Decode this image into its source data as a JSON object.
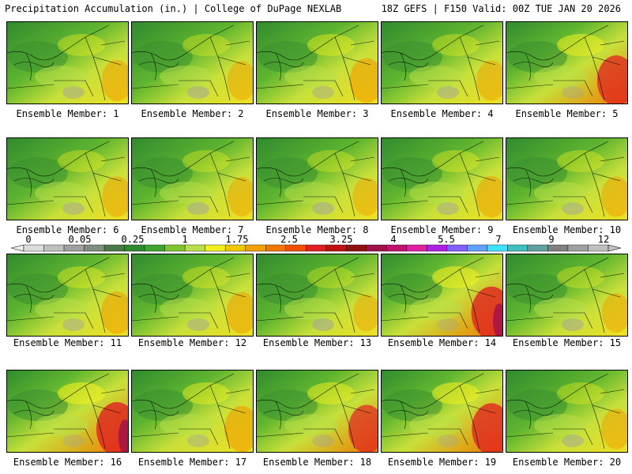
{
  "header": {
    "left": "Precipitation Accumulation (in.) | College of DuPage NEXLAB",
    "right": "18Z GEFS | F150 Valid: 00Z TUE JAN 20 2026"
  },
  "members": [
    {
      "label": "Ensemble Member: 1",
      "intensity": 0.45
    },
    {
      "label": "Ensemble Member: 2",
      "intensity": 0.35
    },
    {
      "label": "Ensemble Member: 3",
      "intensity": 0.6
    },
    {
      "label": "Ensemble Member: 4",
      "intensity": 0.4
    },
    {
      "label": "Ensemble Member: 5",
      "intensity": 0.85
    },
    {
      "label": "Ensemble Member: 6",
      "intensity": 0.4
    },
    {
      "label": "Ensemble Member: 7",
      "intensity": 0.35
    },
    {
      "label": "Ensemble Member: 8",
      "intensity": 0.3
    },
    {
      "label": "Ensemble Member: 9",
      "intensity": 0.45
    },
    {
      "label": "Ensemble Member: 10",
      "intensity": 0.4
    },
    {
      "label": "Ensemble Member: 11",
      "intensity": 0.5
    },
    {
      "label": "Ensemble Member: 12",
      "intensity": 0.45
    },
    {
      "label": "Ensemble Member: 13",
      "intensity": 0.25
    },
    {
      "label": "Ensemble Member: 14",
      "intensity": 0.95
    },
    {
      "label": "Ensemble Member: 15",
      "intensity": 0.35
    },
    {
      "label": "Ensemble Member: 16",
      "intensity": 1.0
    },
    {
      "label": "Ensemble Member: 17",
      "intensity": 0.65
    },
    {
      "label": "Ensemble Member: 18",
      "intensity": 0.75
    },
    {
      "label": "Ensemble Member: 19",
      "intensity": 0.9
    },
    {
      "label": "Ensemble Member: 20",
      "intensity": 0.4
    }
  ],
  "colorbar": {
    "colors": [
      "#dcdcdc",
      "#c0c0c0",
      "#a0a0a0",
      "#7f8f7f",
      "#4a7a4a",
      "#2f8a2f",
      "#3fa52f",
      "#7dc42f",
      "#b8e04a",
      "#f0f020",
      "#f0c800",
      "#f0a000",
      "#f07800",
      "#f05000",
      "#e02020",
      "#c01010",
      "#901010",
      "#a0104a",
      "#c01070",
      "#e020a0",
      "#b020e0",
      "#8060ff",
      "#60a0ff",
      "#40e0ff",
      "#40c0c0",
      "#60a0a0",
      "#808080",
      "#a0a0a0",
      "#c0c0c0"
    ],
    "ticks": [
      "0",
      "0.05",
      "0.25",
      "1",
      "1.75",
      "2.5",
      "3.25",
      "4",
      "5.5",
      "7",
      "9",
      "12"
    ]
  }
}
